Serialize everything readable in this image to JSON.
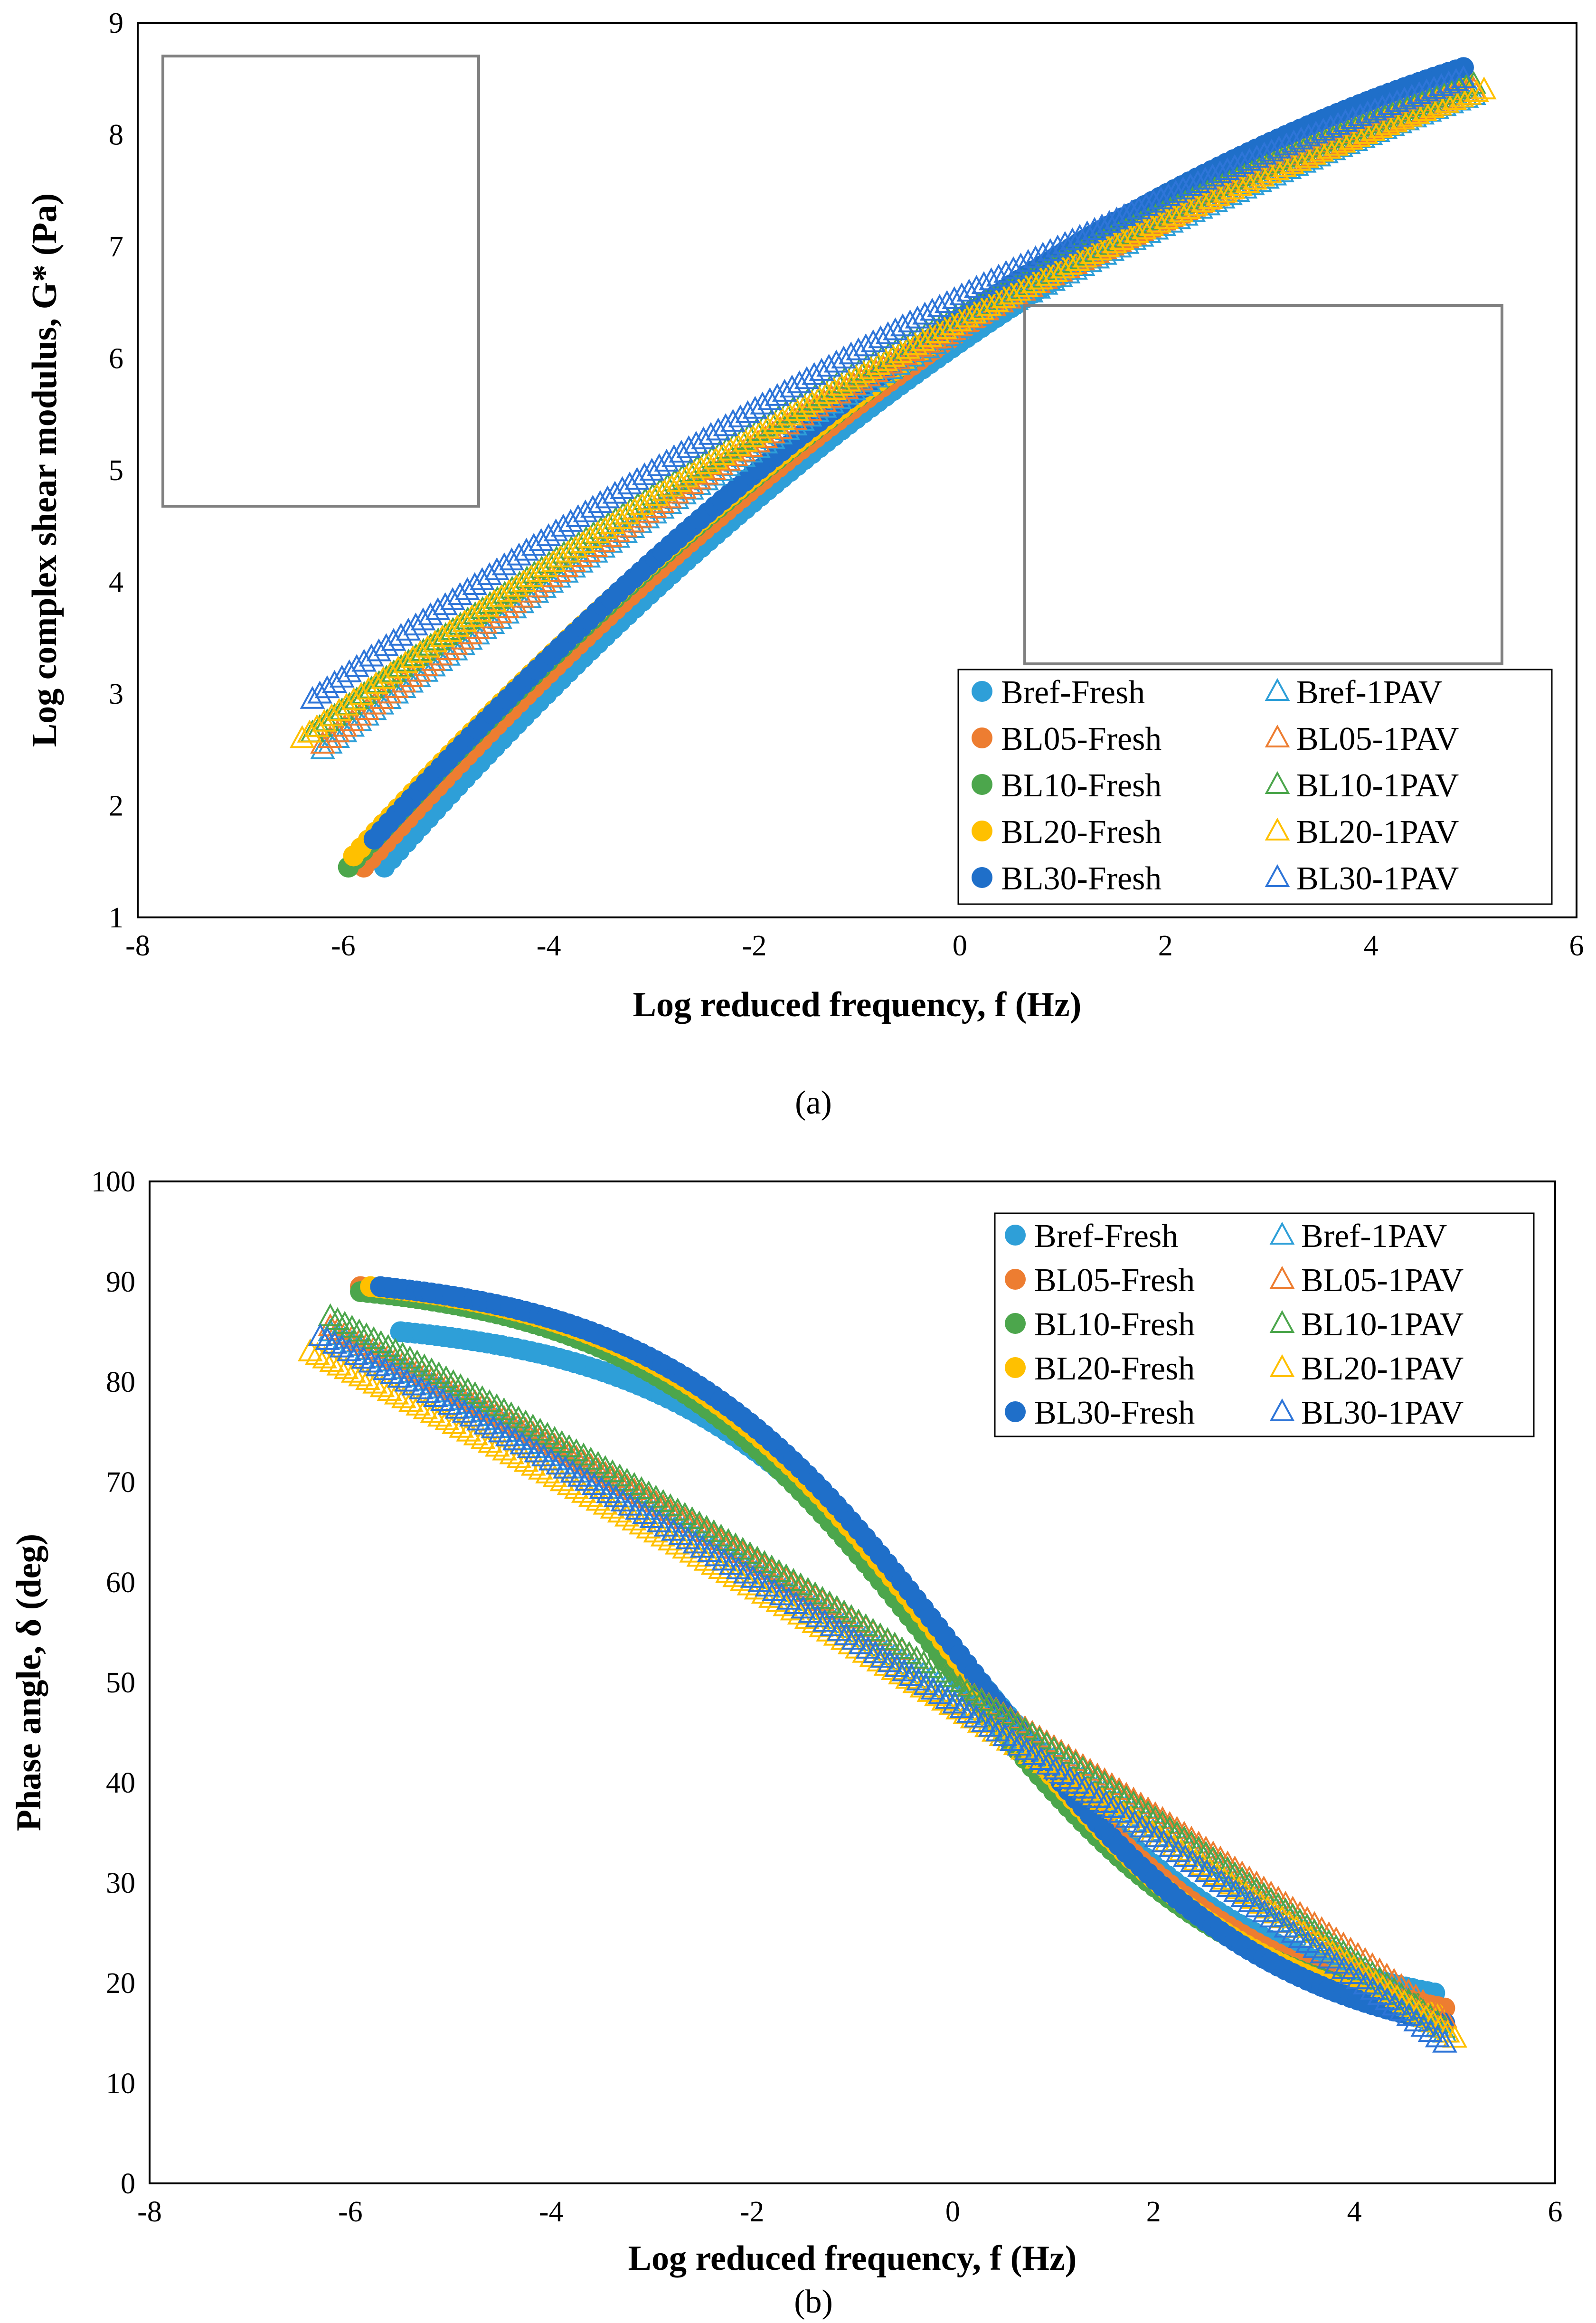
{
  "chart_data": [
    {
      "type": "scatter",
      "caption": "(a)",
      "xlabel": "Log reduced frequency, f (Hz)",
      "ylabel": "Log complex shear modulus, G* (Pa)",
      "xlim": [
        -8,
        6
      ],
      "ylim": [
        1,
        9
      ],
      "xticks": [
        "-8",
        "-6",
        "-4",
        "-2",
        "0",
        "2",
        "4",
        "6"
      ],
      "yticks": [
        "1",
        "2",
        "3",
        "4",
        "5",
        "6",
        "7",
        "8",
        "9"
      ],
      "legend_position": "bottom-right",
      "inset_boxes": [
        "top-left",
        "center-right"
      ],
      "series": [
        {
          "name": "Bref-Fresh",
          "marker": "circle",
          "color": "#2E9FD8",
          "x_start": -5.6,
          "x_end": 4.8,
          "y_start": 1.45,
          "y_end": 8.4
        },
        {
          "name": "BL05-Fresh",
          "marker": "circle",
          "color": "#ED7D31",
          "x_start": -5.8,
          "x_end": 4.8,
          "y_start": 1.45,
          "y_end": 8.45
        },
        {
          "name": "BL10-Fresh",
          "marker": "circle",
          "color": "#4CA64C",
          "x_start": -5.95,
          "x_end": 4.85,
          "y_start": 1.45,
          "y_end": 8.5
        },
        {
          "name": "BL20-Fresh",
          "marker": "circle",
          "color": "#FFC000",
          "x_start": -5.9,
          "x_end": 4.9,
          "y_start": 1.55,
          "y_end": 8.5
        },
        {
          "name": "BL30-Fresh",
          "marker": "circle",
          "color": "#1F6FC9",
          "x_start": -5.7,
          "x_end": 4.9,
          "y_start": 1.7,
          "y_end": 8.6
        },
        {
          "name": "Bref-1PAV",
          "marker": "triangle",
          "color": "#2E9FD8",
          "x_start": -6.2,
          "x_end": 5.0,
          "y_start": 2.5,
          "y_end": 8.35
        },
        {
          "name": "BL05-1PAV",
          "marker": "triangle",
          "color": "#ED7D31",
          "x_start": -6.2,
          "x_end": 5.0,
          "y_start": 2.55,
          "y_end": 8.4
        },
        {
          "name": "BL10-1PAV",
          "marker": "triangle",
          "color": "#4CA64C",
          "x_start": -6.3,
          "x_end": 5.0,
          "y_start": 2.65,
          "y_end": 8.45
        },
        {
          "name": "BL20-1PAV",
          "marker": "triangle",
          "color": "#FFC000",
          "x_start": -6.4,
          "x_end": 5.1,
          "y_start": 2.6,
          "y_end": 8.4
        },
        {
          "name": "BL30-1PAV",
          "marker": "triangle",
          "color": "#2E75D8",
          "x_start": -6.3,
          "x_end": 4.9,
          "y_start": 2.95,
          "y_end": 8.5
        }
      ]
    },
    {
      "type": "scatter",
      "caption": "(b)",
      "xlabel": "Log reduced frequency, f (Hz)",
      "ylabel": "Phase angle, δ (deg)",
      "xlim": [
        -8,
        6
      ],
      "ylim": [
        0,
        100
      ],
      "xticks": [
        "-8",
        "-6",
        "-4",
        "-2",
        "0",
        "2",
        "4",
        "6"
      ],
      "yticks": [
        "0",
        "10",
        "20",
        "30",
        "40",
        "50",
        "60",
        "70",
        "80",
        "90",
        "100"
      ],
      "legend_position": "top-right",
      "series": [
        {
          "name": "Bref-Fresh",
          "marker": "circle",
          "color": "#2E9FD8",
          "x_start": -5.5,
          "x_end": 4.8,
          "y_start": 85,
          "y_end": 19
        },
        {
          "name": "BL05-Fresh",
          "marker": "circle",
          "color": "#ED7D31",
          "x_start": -5.9,
          "x_end": 4.9,
          "y_start": 89.5,
          "y_end": 17.5
        },
        {
          "name": "BL10-Fresh",
          "marker": "circle",
          "color": "#4CA64C",
          "x_start": -5.9,
          "x_end": 4.6,
          "y_start": 89,
          "y_end": 18
        },
        {
          "name": "BL20-Fresh",
          "marker": "circle",
          "color": "#FFC000",
          "x_start": -5.8,
          "x_end": 4.8,
          "y_start": 89.5,
          "y_end": 17
        },
        {
          "name": "BL30-Fresh",
          "marker": "circle",
          "color": "#1F6FC9",
          "x_start": -5.7,
          "x_end": 4.9,
          "y_start": 89.5,
          "y_end": 16
        },
        {
          "name": "Bref-1PAV",
          "marker": "triangle",
          "color": "#2E9FD8",
          "x_start": -6.2,
          "x_end": 4.9,
          "y_start": 85,
          "y_end": 15
        },
        {
          "name": "BL05-1PAV",
          "marker": "triangle",
          "color": "#ED7D31",
          "x_start": -6.2,
          "x_end": 4.9,
          "y_start": 85.5,
          "y_end": 16.5
        },
        {
          "name": "BL10-1PAV",
          "marker": "triangle",
          "color": "#4CA64C",
          "x_start": -6.2,
          "x_end": 4.9,
          "y_start": 86.5,
          "y_end": 15.5
        },
        {
          "name": "BL20-1PAV",
          "marker": "triangle",
          "color": "#FFC000",
          "x_start": -6.4,
          "x_end": 5.0,
          "y_start": 83,
          "y_end": 14.5
        },
        {
          "name": "BL30-1PAV",
          "marker": "triangle",
          "color": "#2E75D8",
          "x_start": -6.3,
          "x_end": 4.9,
          "y_start": 84.5,
          "y_end": 14
        }
      ]
    }
  ]
}
